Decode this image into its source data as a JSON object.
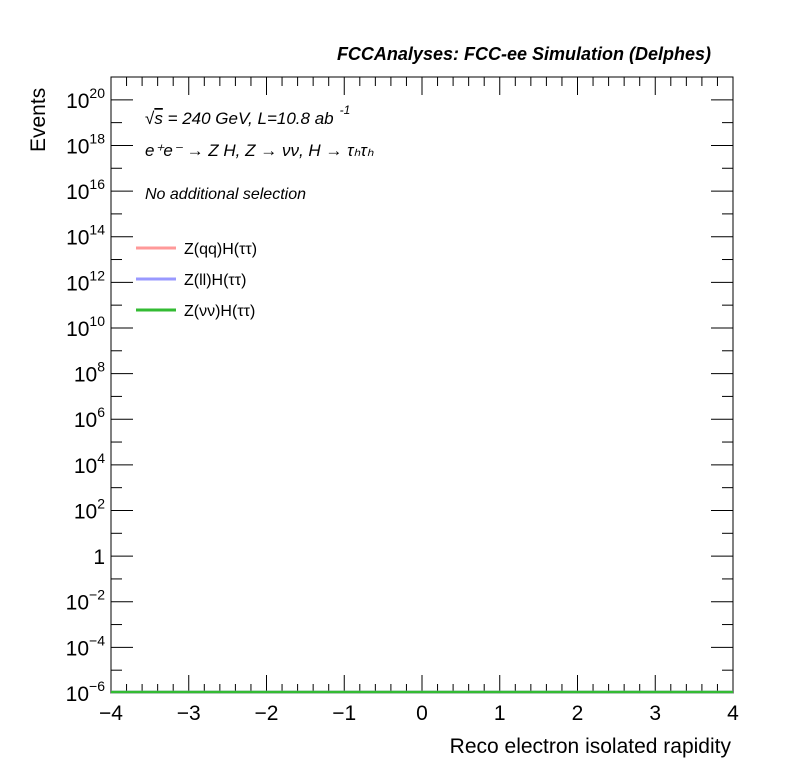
{
  "chart_data": {
    "type": "line",
    "title": "FCCAnalyses: FCC-ee Simulation (Delphes)",
    "xlabel": "Reco electron isolated rapidity",
    "ylabel": "Events",
    "xlim": [
      -4,
      4
    ],
    "ylim": [
      1e-06,
      1e+21
    ],
    "yscale": "log",
    "x_ticks": [
      "−4",
      "−3",
      "−2",
      "−1",
      "0",
      "1",
      "2",
      "3",
      "4"
    ],
    "y_ticks": [
      {
        "base": "10",
        "exp": "−6",
        "value": 1e-06
      },
      {
        "base": "10",
        "exp": "−4",
        "value": 0.0001
      },
      {
        "base": "10",
        "exp": "−2",
        "value": 0.01
      },
      {
        "base": "1",
        "exp": "",
        "value": 1
      },
      {
        "base": "10",
        "exp": "2",
        "value": 100.0
      },
      {
        "base": "10",
        "exp": "4",
        "value": 10000.0
      },
      {
        "base": "10",
        "exp": "6",
        "value": 1000000.0
      },
      {
        "base": "10",
        "exp": "8",
        "value": 100000000.0
      },
      {
        "base": "10",
        "exp": "10",
        "value": 10000000000.0
      },
      {
        "base": "10",
        "exp": "12",
        "value": 1000000000000.0
      },
      {
        "base": "10",
        "exp": "14",
        "value": 100000000000000.0
      },
      {
        "base": "10",
        "exp": "16",
        "value": 1e+16
      },
      {
        "base": "10",
        "exp": "18",
        "value": 1e+18
      },
      {
        "base": "10",
        "exp": "20",
        "value": 1e+20
      }
    ],
    "annotations": {
      "energy": {
        "sqrt": "√",
        "s": "s",
        "rest": " = 240 GeV, L=10.8 ab",
        "sup": "-1"
      },
      "process": "e⁺e⁻ → Z H, Z → νν, H → τₕτₕ",
      "selection": "No additional selection"
    },
    "legend_position": "top-left",
    "series": [
      {
        "name": "Z(qq)H(ττ)",
        "color": "#ff9999",
        "x": [
          -4,
          4
        ],
        "y": [
          1e-06,
          1e-06
        ]
      },
      {
        "name": "Z(ll)H(ττ)",
        "color": "#9999ff",
        "x": [
          -4,
          4
        ],
        "y": [
          1e-06,
          1e-06
        ]
      },
      {
        "name": "Z(νν)H(ττ)",
        "color": "#33bb33",
        "x": [
          -4,
          4
        ],
        "y": [
          1e-06,
          1e-06
        ]
      }
    ]
  }
}
